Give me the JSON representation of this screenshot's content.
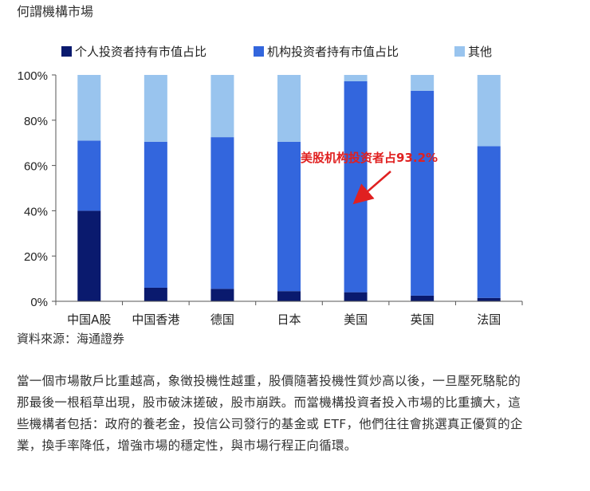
{
  "page": {
    "title": "何謂機構市場",
    "source": "資料來源：海通證券",
    "paragraph": "當一個市場散戶比重越高，象徵投機性越重，股價隨著投機性質炒高以後，一旦壓死駱駝的那最後一根稻草出現，股市破沫搓破，股市崩跌。而當機構投資者投入市場的比重擴大，這些機構者包括：政府的養老金，投信公司發行的基金或 ETF，他們往往會挑選真正優質的企業，換手率降低，增強市場的穩定性，與市場行程正向循環。"
  },
  "chart_data": {
    "type": "bar",
    "stacked": true,
    "categories": [
      "中国A股",
      "中国香港",
      "德国",
      "日本",
      "美国",
      "英国",
      "法国"
    ],
    "series": [
      {
        "name": "个人投资者持有市值占比",
        "color": "#0a1a6e",
        "values": [
          40,
          6,
          5.5,
          4.5,
          4,
          2.5,
          1.5
        ]
      },
      {
        "name": "机构投资者持有市值占比",
        "color": "#3366dd",
        "values": [
          31,
          64.5,
          67,
          66,
          93.2,
          90.5,
          67
        ]
      },
      {
        "name": "其他",
        "color": "#99c4ee",
        "values": [
          29,
          29.5,
          27.5,
          29.5,
          2.8,
          7,
          31.5
        ]
      }
    ],
    "yticks": [
      "0%",
      "20%",
      "40%",
      "60%",
      "80%",
      "100%"
    ],
    "ylim": [
      0,
      100
    ],
    "legend_position": "top",
    "annotation": {
      "text": "美股机构投资者占93.2%",
      "color": "#e02020"
    },
    "grid": false
  }
}
